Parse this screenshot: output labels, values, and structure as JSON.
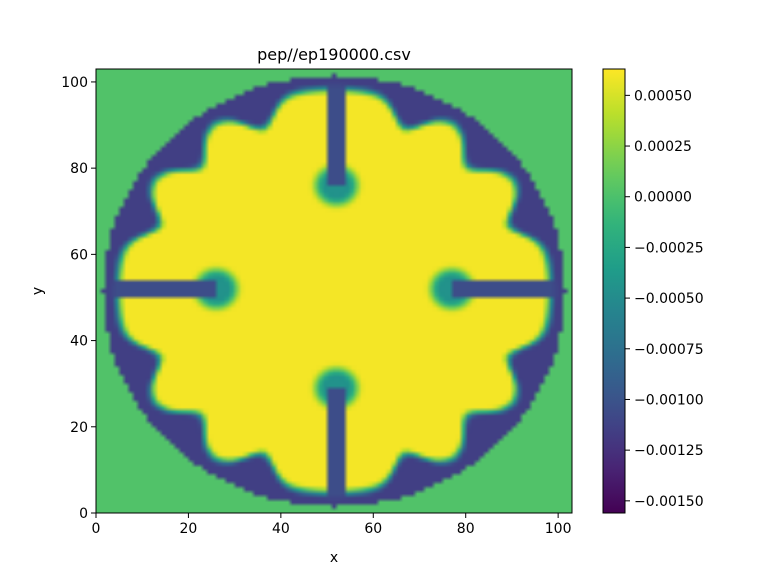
{
  "chart_data": {
    "type": "heatmap",
    "title": "pep//ep190000.csv",
    "xlabel": "x",
    "ylabel": "y",
    "xlim": [
      0,
      103
    ],
    "ylim": [
      0,
      103
    ],
    "x_ticks": [
      0,
      20,
      40,
      60,
      80,
      100
    ],
    "y_ticks": [
      0,
      20,
      40,
      60,
      80,
      100
    ],
    "grid": false,
    "colormap": "viridis",
    "colorbar": {
      "range": [
        -0.00156,
        0.00063
      ],
      "tick_values": [
        0.0005,
        0.00025,
        0.0,
        -0.00025,
        -0.0005,
        -0.00075,
        -0.001,
        -0.00125,
        -0.0015
      ],
      "tick_labels": [
        "0.00050",
        "0.00025",
        "0.00000",
        "−0.00025",
        "−0.00050",
        "−0.00075",
        "−0.00100",
        "−0.00125",
        "−0.00150"
      ]
    },
    "field": {
      "grid_size": 103,
      "center": [
        51.5,
        51.5
      ],
      "disk_radius": 50,
      "background_value": 2e-05,
      "interior_value": 0.0006,
      "rim_value": -0.00115,
      "slot_value": -0.00105,
      "slots": [
        {
          "direction": "top",
          "tip": [
            52,
            76
          ]
        },
        {
          "direction": "bottom",
          "tip": [
            52,
            29
          ]
        },
        {
          "direction": "left",
          "tip": [
            26,
            52
          ]
        },
        {
          "direction": "right",
          "tip": [
            77,
            52
          ]
        }
      ],
      "rim_bumps_deg": [
        22,
        45,
        68,
        112,
        135,
        158,
        202,
        225,
        248,
        292,
        315,
        338
      ]
    }
  }
}
